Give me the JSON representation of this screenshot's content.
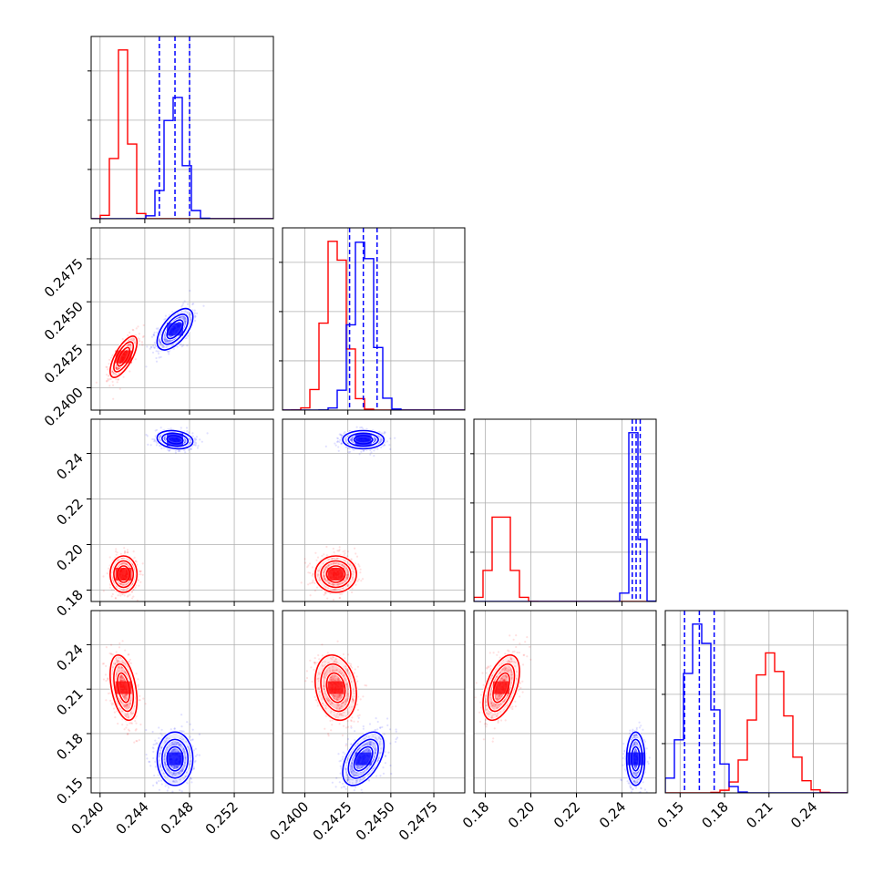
{
  "chart_data": {
    "type": "corner",
    "grid": true,
    "colors": {
      "red": "#ff0000",
      "blue": "#0000ff"
    },
    "parameters": [
      {
        "range": [
          0.2392,
          0.2555
        ],
        "ticks": [
          0.24,
          0.244,
          0.248,
          0.252
        ],
        "tick_labels": [
          "0.240",
          "0.244",
          "0.248",
          "0.252"
        ],
        "red": {
          "mean": 0.2421,
          "sigma": 0.0006
        },
        "blue": {
          "mean": 0.2467,
          "sigma": 0.0008,
          "quantiles": [
            0.2453,
            0.2467,
            0.248
          ]
        }
      },
      {
        "range": [
          0.2387,
          0.2493
        ],
        "ticks": [
          0.24,
          0.2425,
          0.245,
          0.2475
        ],
        "tick_labels": [
          "0.2400",
          "0.2425",
          "0.2450",
          "0.2475"
        ],
        "red": {
          "mean": 0.2418,
          "sigma": 0.0006
        },
        "blue": {
          "mean": 0.2434,
          "sigma": 0.0006,
          "quantiles": [
            0.2426,
            0.2434,
            0.2442
          ]
        }
      },
      {
        "range": [
          0.175,
          0.255
        ],
        "ticks": [
          0.18,
          0.2,
          0.22,
          0.24
        ],
        "tick_labels": [
          "0.18",
          "0.20",
          "0.22",
          "0.24"
        ],
        "red": {
          "mean": 0.187,
          "sigma": 0.004
        },
        "blue": {
          "mean": 0.246,
          "sigma": 0.002,
          "quantiles": [
            0.2445,
            0.2462,
            0.248
          ]
        }
      },
      {
        "range": [
          0.14,
          0.263
        ],
        "ticks": [
          0.15,
          0.18,
          0.21,
          0.24
        ],
        "tick_labels": [
          "0.15",
          "0.18",
          "0.21",
          "0.24"
        ],
        "red": {
          "mean": 0.211,
          "sigma": 0.011
        },
        "blue": {
          "mean": 0.163,
          "sigma": 0.009,
          "quantiles": [
            0.153,
            0.163,
            0.173
          ]
        }
      }
    ],
    "correlations": {
      "red": {
        "0-1": 0.7,
        "0-2": 0.0,
        "0-3": -0.4,
        "1-2": 0.0,
        "1-3": -0.2,
        "2-3": 0.5
      },
      "blue": {
        "0-1": 0.6,
        "0-2": -0.2,
        "0-3": 0.0,
        "1-2": 0.0,
        "1-3": 0.5,
        "2-3": 0.0
      }
    }
  }
}
